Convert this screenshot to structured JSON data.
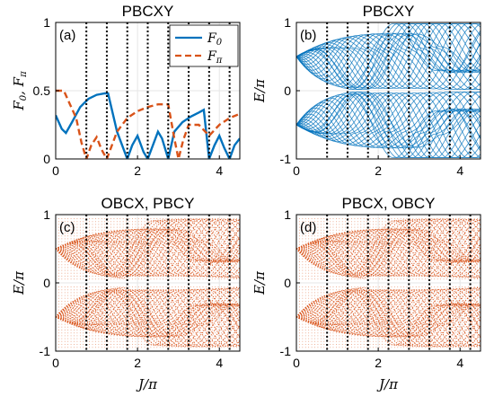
{
  "colors": {
    "f0": "#0072BD",
    "fpi": "#D95319",
    "dotted": "#000000",
    "grid": "#e6e6e6"
  },
  "chart_data": [
    {
      "type": "line",
      "panel_label": "(a)",
      "title": "PBCXY",
      "xlabel": "",
      "ylabel": "F0, Fπ",
      "xlim": [
        0,
        4.5
      ],
      "ylim": [
        0,
        1
      ],
      "xticks": [
        0,
        2,
        4
      ],
      "yticks": [
        0,
        0.5,
        1
      ],
      "ytick_labels": [
        "0",
        "0.5",
        "1"
      ],
      "grid": true,
      "legend_position": "top-right",
      "vlines": [
        0.75,
        1.25,
        1.75,
        2.25,
        2.75,
        3.25,
        3.75,
        4.25
      ],
      "series": [
        {
          "name": "F0",
          "style": "solid",
          "x": [
            0,
            0.15,
            0.25,
            0.4,
            0.6,
            0.8,
            1.0,
            1.2,
            1.28,
            1.5,
            1.75,
            1.87,
            2.0,
            2.15,
            2.25,
            2.5,
            2.6,
            2.75,
            2.9,
            3.1,
            3.3,
            3.5,
            3.62,
            3.75,
            3.88,
            4.0,
            4.12,
            4.25,
            4.37,
            4.5
          ],
          "y": [
            0.32,
            0.22,
            0.19,
            0.27,
            0.38,
            0.44,
            0.47,
            0.48,
            0.48,
            0.2,
            0.0,
            0.1,
            0.17,
            0.05,
            0.0,
            0.2,
            0.15,
            0.0,
            0.2,
            0.27,
            0.31,
            0.34,
            0.36,
            0.0,
            0.1,
            0.17,
            0.08,
            0.0,
            0.1,
            0.15
          ]
        },
        {
          "name": "Fπ",
          "style": "dashed",
          "x": [
            0,
            0.2,
            0.35,
            0.5,
            0.63,
            0.75,
            0.87,
            1.0,
            1.12,
            1.25,
            1.5,
            1.75,
            2.0,
            2.25,
            2.5,
            2.75,
            2.9,
            3.0,
            3.12,
            3.25,
            3.5,
            3.75,
            4.0,
            4.25,
            4.5
          ],
          "y": [
            0.5,
            0.5,
            0.4,
            0.3,
            0.12,
            0.0,
            0.1,
            0.16,
            0.07,
            0.0,
            0.2,
            0.3,
            0.35,
            0.38,
            0.4,
            0.4,
            0.15,
            0.0,
            0.14,
            0.25,
            0.25,
            0.17,
            0.25,
            0.3,
            0.33
          ]
        }
      ]
    },
    {
      "type": "line",
      "panel_label": "(b)",
      "title": "PBCXY",
      "xlabel": "",
      "ylabel": "E/π",
      "xlim": [
        0,
        4.5
      ],
      "ylim": [
        -1,
        1
      ],
      "xticks": [
        0,
        2,
        4
      ],
      "yticks": [
        -1,
        0,
        1
      ],
      "grid": true,
      "style": "solid",
      "vlines": [
        0.75,
        1.25,
        1.75,
        2.25,
        2.75,
        3.25,
        3.75,
        4.25
      ],
      "band_count": 24
    },
    {
      "type": "line",
      "panel_label": "(c)",
      "title": "OBCX, PBCY",
      "xlabel": "J/π",
      "ylabel": "E/π",
      "xlim": [
        0,
        4.5
      ],
      "ylim": [
        -1,
        1
      ],
      "xticks": [
        0,
        2,
        4
      ],
      "yticks": [
        -1,
        0,
        1
      ],
      "grid": true,
      "style": "dotted",
      "vlines": [
        0.75,
        1.25,
        1.75,
        2.25,
        2.75,
        3.25,
        3.75,
        4.25
      ],
      "band_count": 28
    },
    {
      "type": "line",
      "panel_label": "(d)",
      "title": "PBCX, OBCY",
      "xlabel": "J/π",
      "ylabel": "E/π",
      "xlim": [
        0,
        4.5
      ],
      "ylim": [
        -1,
        1
      ],
      "xticks": [
        0,
        2,
        4
      ],
      "yticks": [
        -1,
        0,
        1
      ],
      "grid": true,
      "style": "dotted",
      "vlines": [
        0.75,
        1.25,
        1.75,
        2.25,
        2.75,
        3.25,
        3.75,
        4.25
      ],
      "band_count": 28
    }
  ]
}
